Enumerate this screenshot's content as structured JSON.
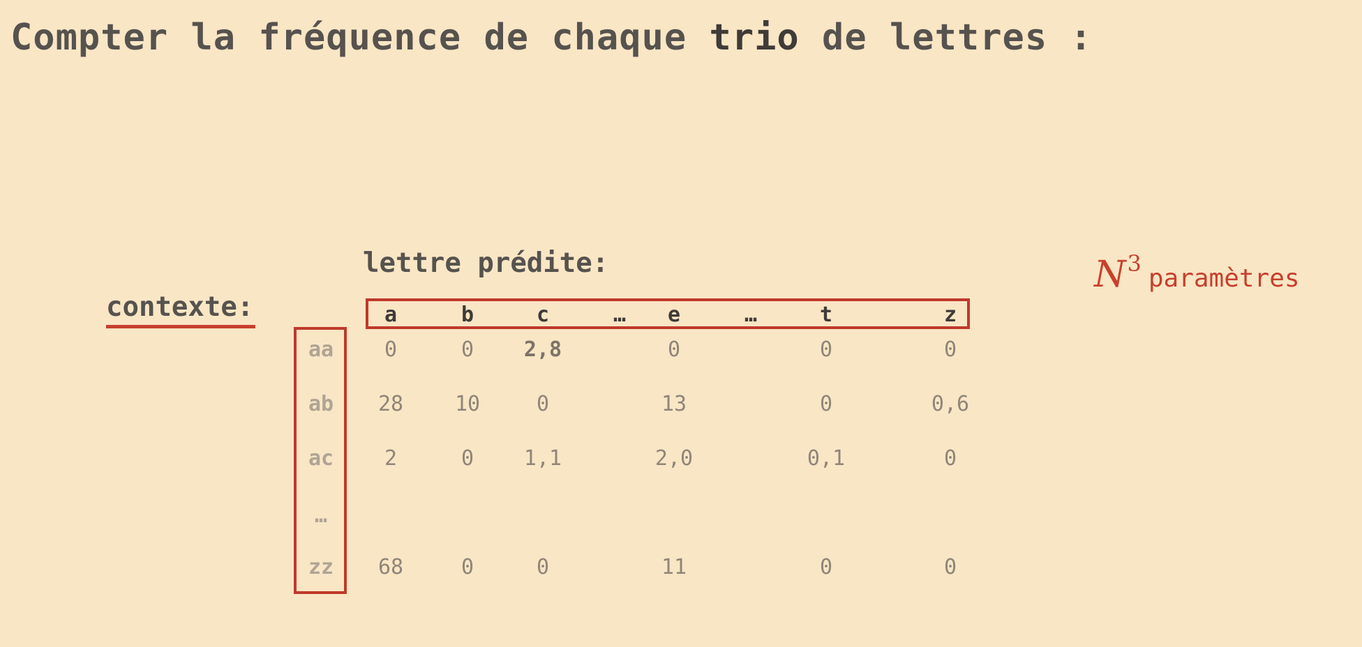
{
  "title": {
    "prefix": "Compter la fréquence de chaque ",
    "bold": "trio",
    "suffix": " de lettres :"
  },
  "predicted_label": "lettre prédite:",
  "context_label": "contexte",
  "context_colon": ":",
  "parameters": {
    "symbol": "N",
    "exponent": "3",
    "word": "paramètres"
  },
  "columns": [
    "a",
    "b",
    "c",
    "…",
    "e",
    "…",
    "t",
    "z"
  ],
  "rows": [
    {
      "label": "aa",
      "cells": [
        "0",
        "0",
        "2,8",
        "",
        "0",
        "",
        "0",
        "0"
      ]
    },
    {
      "label": "ab",
      "cells": [
        "28",
        "10",
        "0",
        "",
        "13",
        "",
        "0",
        "0,6"
      ]
    },
    {
      "label": "ac",
      "cells": [
        "2",
        "0",
        "1,1",
        "",
        "2,0",
        "",
        "0,1",
        "0"
      ]
    },
    {
      "label": "…",
      "cells": [
        "",
        "",
        "",
        "",
        "",
        "",
        "",
        ""
      ]
    },
    {
      "label": "zz",
      "cells": [
        "68",
        "0",
        "0",
        "",
        "11",
        "",
        "0",
        "0"
      ]
    }
  ],
  "highlight_color": "#c0392b",
  "background_color": "#f9e6c5"
}
